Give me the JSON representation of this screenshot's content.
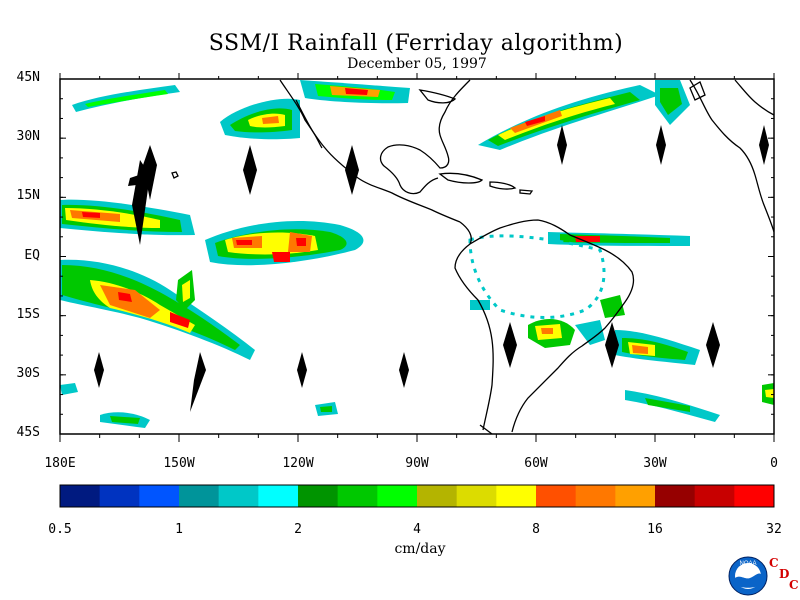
{
  "title": "SSM/I Rainfall (Ferriday algorithm)",
  "date": "December 05, 1997",
  "lat_labels": [
    "45N",
    "30N",
    "15N",
    "EQ",
    "15S",
    "30S",
    "45S"
  ],
  "lon_labels": [
    "180E",
    "150W",
    "120W",
    "90W",
    "60W",
    "30W",
    "0"
  ],
  "colorbar": {
    "units": "cm/day",
    "tick_labels": [
      "0.5",
      "1",
      "2",
      "4",
      "8",
      "16",
      "32"
    ],
    "colors": [
      "#001a80",
      "#0033c0",
      "#0055ff",
      "#00949a",
      "#00c8c8",
      "#00ffff",
      "#009400",
      "#00c800",
      "#00ff00",
      "#b4b400",
      "#dcdc00",
      "#ffff00",
      "#ff5000",
      "#ff7800",
      "#ffa000",
      "#960000",
      "#c80000",
      "#ff0000"
    ]
  },
  "logo": {
    "name": "noaa-logo-icon",
    "text": "NOAA",
    "cdc_letters": [
      "C",
      "D",
      "C"
    ]
  }
}
